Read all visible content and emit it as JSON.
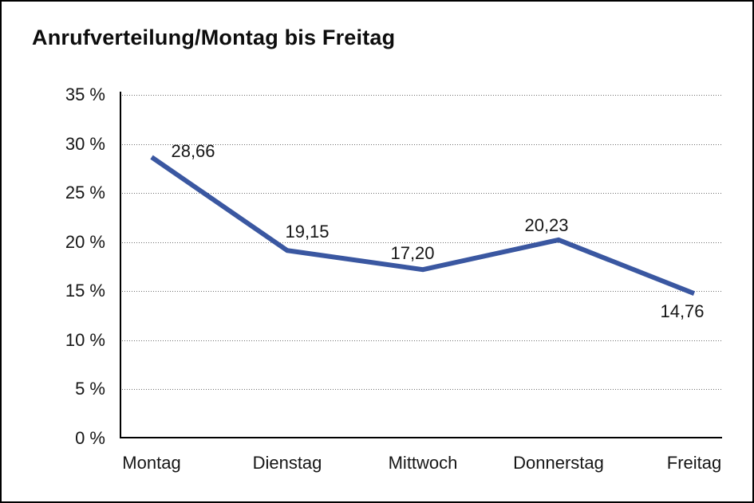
{
  "chart_data": {
    "type": "line",
    "title": "Anrufverteilung/Montag bis Freitag",
    "categories": [
      "Montag",
      "Dienstag",
      "Mittwoch",
      "Donnerstag",
      "Freitag"
    ],
    "values": [
      28.66,
      19.15,
      17.2,
      20.23,
      14.76
    ],
    "data_labels": [
      "28,66",
      "19,15",
      "17,20",
      "20,23",
      "14,76"
    ],
    "y_ticks": [
      "35 %",
      "30 %",
      "25 %",
      "20 %",
      "15 %",
      "10 %",
      "5 %",
      "0 %"
    ],
    "ylim": [
      0,
      35
    ],
    "y_tick_step": 5,
    "line_color": "#3A57A1",
    "grid": "horizontal-dotted",
    "legend": "none"
  }
}
